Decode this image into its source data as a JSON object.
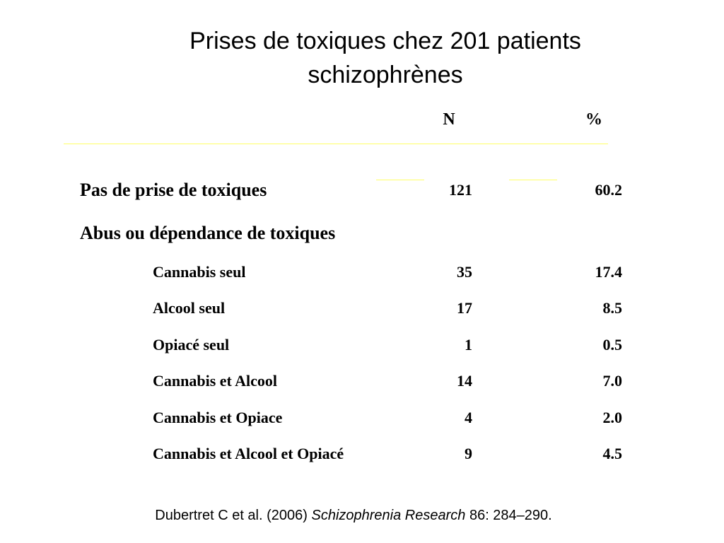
{
  "title": {
    "line1": "Prises de toxiques chez 201 patients",
    "line2": "schizophrènes"
  },
  "table": {
    "headers": {
      "n": "N",
      "pct": "%"
    },
    "no_use": {
      "label": "Pas de prise de toxiques",
      "n": "121",
      "pct": "60.2"
    },
    "abuse_heading": "Abus ou dépendance de toxiques",
    "rows": [
      {
        "label": "Cannabis seul",
        "n": "35",
        "pct": "17.4"
      },
      {
        "label": "Alcool seul",
        "n": "17",
        "pct": "8.5"
      },
      {
        "label": "Opiacé seul",
        "n": "1",
        "pct": "0.5"
      },
      {
        "label": "Cannabis et Alcool",
        "n": "14",
        "pct": "7.0"
      },
      {
        "label": "Cannabis et Opiace",
        "n": "4",
        "pct": "2.0"
      },
      {
        "label": "Cannabis et Alcool et Opiacé",
        "n": "9",
        "pct": "4.5"
      }
    ]
  },
  "citation": {
    "authors": "Dubertret C et al. (2006) ",
    "journal": "Schizophrenia Research",
    "volume": " 86: 284–290."
  },
  "colors": {
    "background": "#ffffff",
    "text": "#000000",
    "rule": "#ffff66"
  }
}
